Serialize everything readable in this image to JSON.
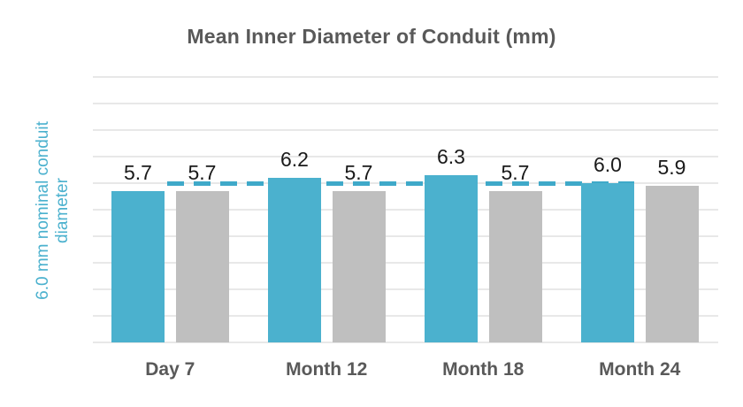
{
  "colors": {
    "teal": "#4BB1CE",
    "teal_dash": "#3FA9C9",
    "gray": "#BFBFBF",
    "gridline": "#E8E8E8",
    "axis_text": "#595959",
    "value_text": "#1A1A1A",
    "background": "#FFFFFF"
  },
  "chart_data": {
    "type": "bar",
    "title": "Mean Inner Diameter of Conduit (mm)",
    "categories": [
      "Day 7",
      "Month 12",
      "Month 18",
      "Month 24"
    ],
    "series": [
      {
        "name": "teal-bars",
        "color": "#4BB1CE",
        "values": [
          5.7,
          6.2,
          6.3,
          6.0
        ],
        "display_labels": [
          "5.7",
          "6.2",
          "6.3",
          "6.0"
        ]
      },
      {
        "name": "gray-bars",
        "color": "#BFBFBF",
        "values": [
          5.7,
          5.7,
          5.7,
          5.9
        ],
        "display_labels": [
          "5.7",
          "5.7",
          "5.7",
          "5.9"
        ]
      }
    ],
    "reference_line": {
      "value": 6.0,
      "style": "dashed",
      "color": "#3FA9C9"
    },
    "ylabel": "6.0 mm nominal conduit diameter",
    "ylabel_lines": [
      "6.0 mm nominal conduit",
      "diameter"
    ],
    "xlabel": "",
    "ylim": [
      0,
      10
    ],
    "gridline_interval": 1,
    "grid": "on",
    "legend": "none",
    "value_labels_shown": true
  }
}
